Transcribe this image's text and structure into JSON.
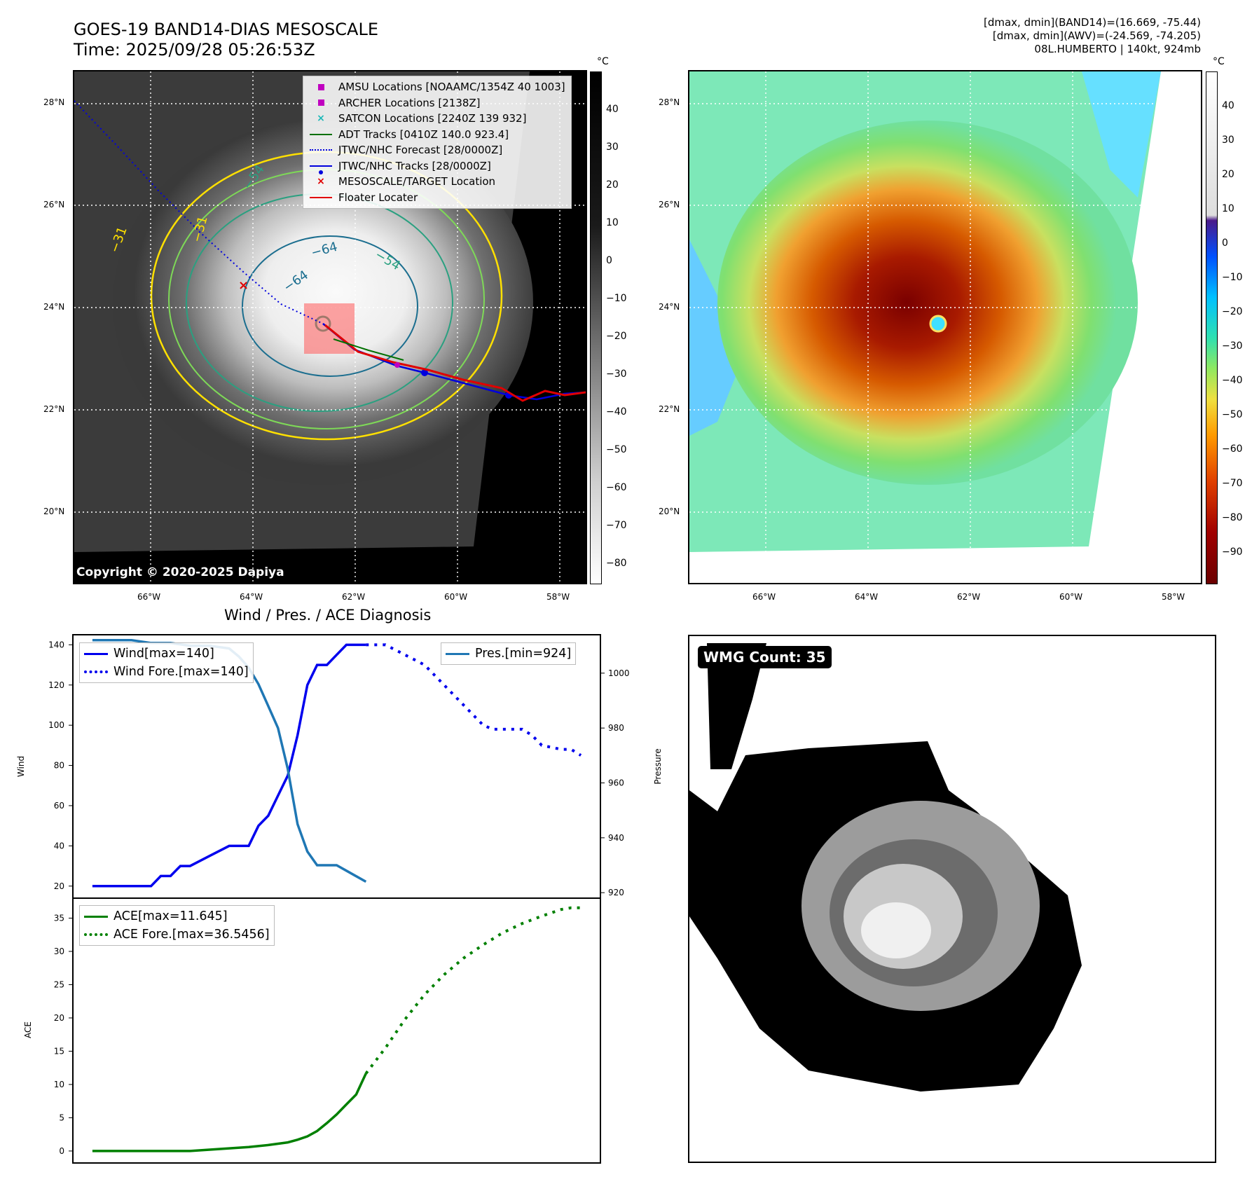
{
  "header": {
    "title": "GOES-19 BAND14-DIAS MESOSCALE",
    "time": "Time: 2025/09/28 05:26:53Z",
    "stats_line1": "[dmax, dmin](BAND14)=(16.669, -75.44)",
    "stats_line2": "[dmax, dmin](AWV)=(-24.569, -74.205)",
    "stats_line3": "08L.HUMBERTO | 140kt, 924mb"
  },
  "colorbar_unit": "°C",
  "map_ticks": {
    "lat": [
      "28°N",
      "26°N",
      "24°N",
      "22°N",
      "20°N"
    ],
    "lon": [
      "66°W",
      "64°W",
      "62°W",
      "60°W",
      "58°W"
    ]
  },
  "left_colorbar_ticks": [
    "40",
    "30",
    "20",
    "10",
    "0",
    "−10",
    "−20",
    "−30",
    "−40",
    "−50",
    "−60",
    "−70",
    "−80"
  ],
  "right_colorbar_ticks": [
    "40",
    "30",
    "20",
    "10",
    "0",
    "−10",
    "−20",
    "−30",
    "−40",
    "−50",
    "−60",
    "−70",
    "−80",
    "−90"
  ],
  "contour_labels": [
    "−31",
    "−31",
    "−54",
    "−64",
    "−64",
    "−54"
  ],
  "map_legend": [
    {
      "label": "AMSU Locations [NOAAMC/1354Z 40 1003]",
      "symbol": "square",
      "color": "#c000c0"
    },
    {
      "label": "ARCHER Locations [2138Z]",
      "symbol": "square",
      "color": "#c000c0"
    },
    {
      "label": "SATCON Locations [2240Z 139 932]",
      "symbol": "x",
      "color": "#1cb8b8"
    },
    {
      "label": "ADT Tracks [0410Z 140.0 923.4]",
      "symbol": "line",
      "color": "#007000"
    },
    {
      "label": "JTWC/NHC Forecast [28/0000Z]",
      "symbol": "dotted",
      "color": "#0000dd"
    },
    {
      "label": "JTWC/NHC Tracks [28/0000Z]",
      "symbol": "dotline",
      "color": "#0000dd"
    },
    {
      "label": "MESOSCALE/TARGET Location",
      "symbol": "x",
      "color": "#e00000"
    },
    {
      "label": "Floater Locater",
      "symbol": "line",
      "color": "#e00000"
    }
  ],
  "copyright": "Copyright © 2020-2025 Dapiya",
  "diagnosis_title": "Wind / Pres. / ACE Diagnosis",
  "wmg_label": "WMG Count: 35",
  "chart_data": [
    {
      "type": "line",
      "name": "wind-pressure",
      "ylabel": "Wind",
      "y2label": "Pressure",
      "ylim": [
        14,
        145
      ],
      "y2lim": [
        918,
        1014
      ],
      "yticks": [
        20,
        40,
        60,
        80,
        100,
        120,
        140
      ],
      "y2ticks": [
        920,
        940,
        960,
        980,
        1000
      ],
      "legend_left": [
        "Wind[max=140]",
        "Wind Fore.[max=140]"
      ],
      "legend_right": [
        "Pres.[min=924]"
      ],
      "x": [
        0,
        1,
        2,
        3,
        4,
        5,
        6,
        7,
        8,
        9,
        10,
        11,
        12,
        13,
        14,
        15,
        16,
        17,
        18,
        19,
        20,
        21,
        22,
        23,
        24,
        25,
        26,
        27,
        28,
        29,
        30,
        31,
        32,
        33,
        34,
        35,
        36,
        37,
        38,
        39,
        40,
        41,
        42,
        43,
        44,
        45,
        46,
        47,
        48,
        49,
        50
      ],
      "xlim": [
        -2,
        52
      ],
      "series": [
        {
          "name": "Wind",
          "color": "#0000ee",
          "style": "solid",
          "x": [
            0,
            2,
            4,
            5,
            6,
            7,
            8,
            9,
            10,
            12,
            14,
            15,
            16,
            17,
            18,
            19,
            20,
            21,
            22,
            23,
            24,
            25,
            26,
            27,
            28
          ],
          "values": [
            20,
            20,
            20,
            20,
            20,
            25,
            25,
            30,
            30,
            35,
            40,
            40,
            40,
            50,
            55,
            65,
            75,
            95,
            120,
            130,
            130,
            135,
            140,
            140,
            140
          ]
        },
        {
          "name": "Wind Fore.",
          "color": "#0000ee",
          "style": "dotted",
          "x": [
            28,
            29,
            30,
            32,
            34,
            36,
            38,
            40,
            41,
            42,
            44,
            45,
            46,
            48,
            49,
            50
          ],
          "values": [
            140,
            140,
            140,
            135,
            130,
            120,
            110,
            100,
            98,
            98,
            98,
            95,
            90,
            88,
            88,
            85
          ]
        },
        {
          "name": "Pres.",
          "color": "#1f77b4",
          "style": "solid",
          "axis": "right",
          "x": [
            0,
            2,
            4,
            6,
            8,
            10,
            12,
            14,
            15,
            16,
            17,
            18,
            19,
            20,
            21,
            22,
            23,
            24,
            25,
            26,
            27,
            28
          ],
          "values": [
            1012,
            1012,
            1012,
            1011,
            1011,
            1010,
            1010,
            1009,
            1006,
            1002,
            996,
            988,
            980,
            965,
            945,
            935,
            930,
            930,
            930,
            928,
            926,
            924
          ]
        }
      ]
    },
    {
      "type": "line",
      "name": "ace",
      "ylabel": "ACE",
      "ylim": [
        -1.8,
        38
      ],
      "yticks": [
        0,
        5,
        10,
        15,
        20,
        25,
        30,
        35
      ],
      "xlim": [
        -2,
        52
      ],
      "legend": [
        "ACE[max=11.645]",
        "ACE Fore.[max=36.5456]"
      ],
      "series": [
        {
          "name": "ACE",
          "color": "#008000",
          "style": "solid",
          "x": [
            0,
            4,
            8,
            10,
            12,
            14,
            16,
            18,
            20,
            21,
            22,
            23,
            24,
            25,
            26,
            27,
            28
          ],
          "values": [
            0,
            0,
            0,
            0,
            0.2,
            0.4,
            0.6,
            0.9,
            1.3,
            1.7,
            2.2,
            3.0,
            4.2,
            5.5,
            7.0,
            8.5,
            11.645
          ]
        },
        {
          "name": "ACE Fore.",
          "color": "#008000",
          "style": "dotted",
          "x": [
            28,
            30,
            32,
            34,
            36,
            38,
            40,
            42,
            44,
            46,
            48,
            49,
            50
          ],
          "values": [
            11.645,
            15.5,
            19.8,
            23.5,
            26.5,
            29,
            31,
            32.8,
            34.2,
            35.3,
            36.3,
            36.5456,
            36.5456
          ]
        }
      ]
    }
  ]
}
